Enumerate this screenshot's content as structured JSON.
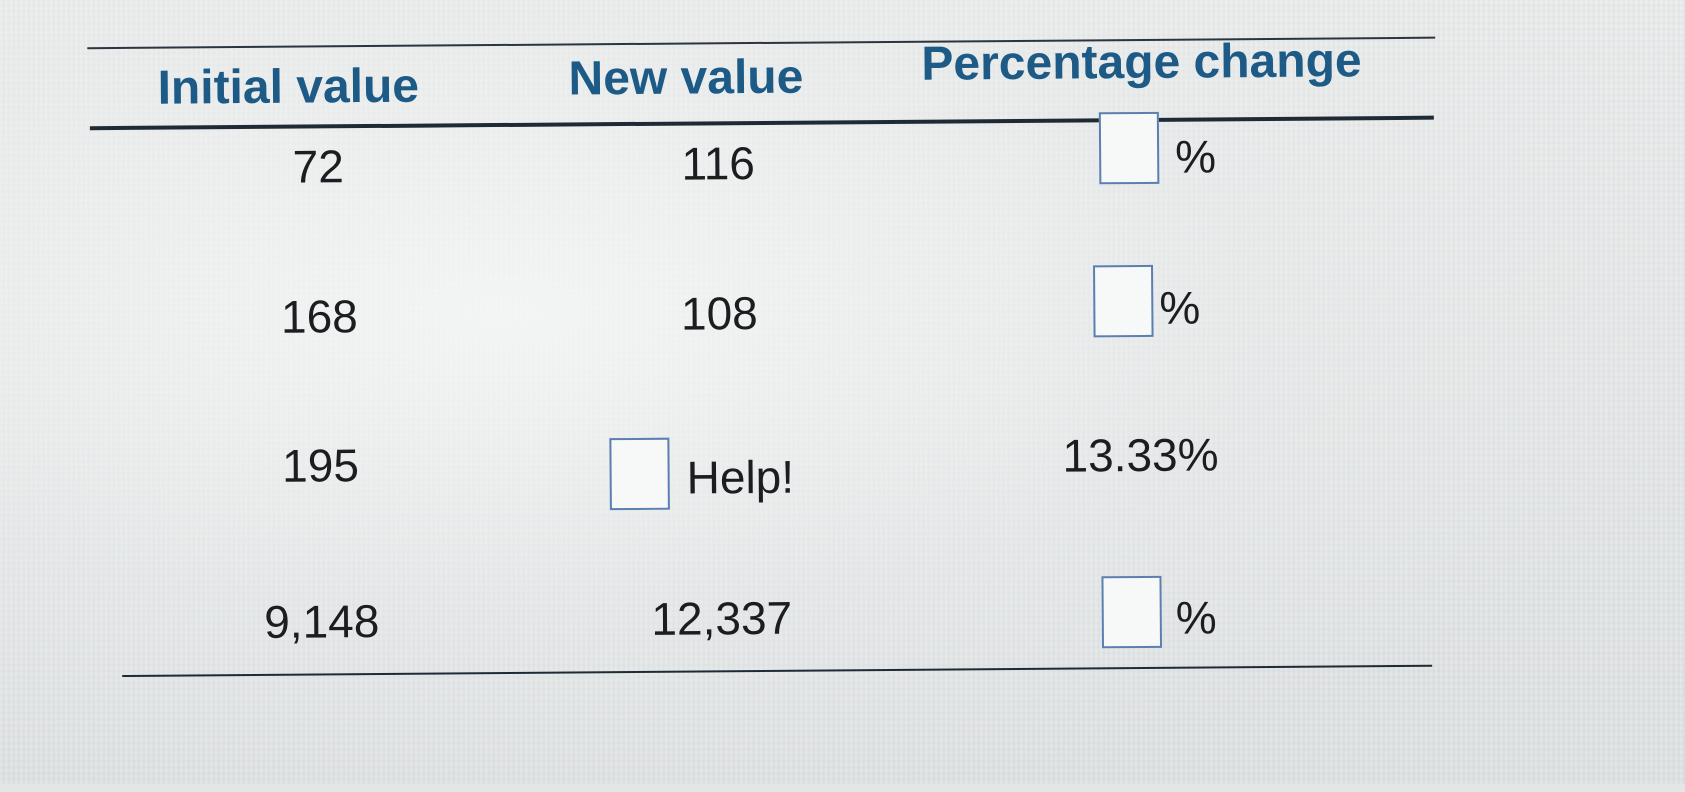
{
  "table": {
    "headers": {
      "initial": "Initial value",
      "new": "New value",
      "percent": "Percentage change"
    },
    "rows": [
      {
        "initial": "72",
        "new": "116",
        "percent_suffix": "%"
      },
      {
        "initial": "168",
        "new": "108",
        "percent_suffix": "%"
      },
      {
        "initial": "195",
        "new_help": "Help!",
        "percent_given": "13.33%"
      },
      {
        "initial": "9,148",
        "new": "12,337",
        "percent_suffix": "%"
      }
    ]
  },
  "colors": {
    "header_text": "#1d5a86",
    "body_text": "#1b1d20",
    "answer_box_border": "#5a7fb0",
    "rule": "#1e2a34"
  }
}
